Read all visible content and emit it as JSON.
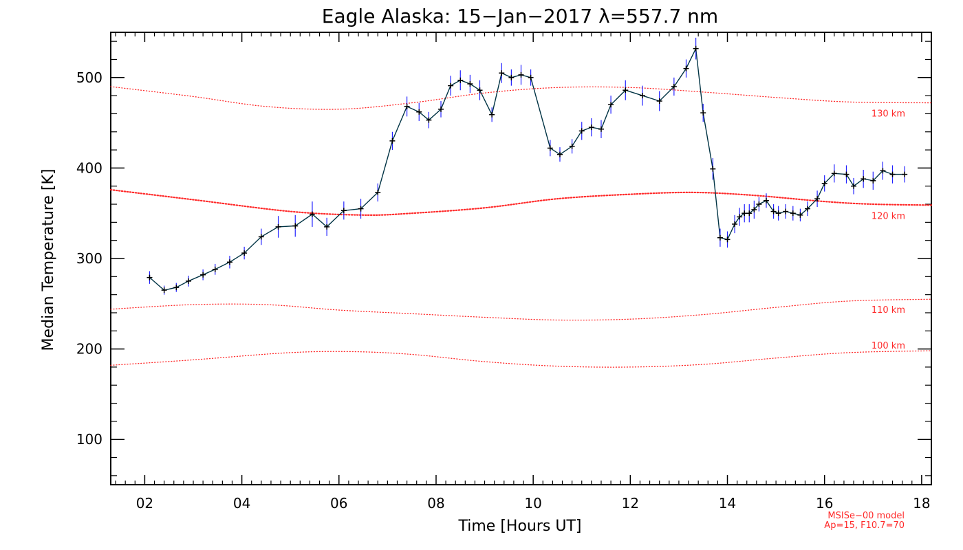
{
  "chart_data": {
    "type": "line",
    "title": "Eagle Alaska: 15−Jan−2017 λ=557.7 nm",
    "xlabel": "Time [Hours UT]",
    "ylabel": "Median Temperature [K]",
    "xlim": [
      1.3,
      18.2
    ],
    "ylim": [
      50,
      550
    ],
    "xticks": [
      {
        "value": 2,
        "label": "02"
      },
      {
        "value": 4,
        "label": "04"
      },
      {
        "value": 6,
        "label": "06"
      },
      {
        "value": 8,
        "label": "08"
      },
      {
        "value": 10,
        "label": "10"
      },
      {
        "value": 12,
        "label": "12"
      },
      {
        "value": 14,
        "label": "14"
      },
      {
        "value": 16,
        "label": "16"
      },
      {
        "value": 18,
        "label": "18"
      }
    ],
    "yticks": [
      {
        "value": 100,
        "label": "100"
      },
      {
        "value": 200,
        "label": "200"
      },
      {
        "value": 300,
        "label": "300"
      },
      {
        "value": 400,
        "label": "400"
      },
      {
        "value": 500,
        "label": "500"
      }
    ],
    "grid": false,
    "colors": {
      "measured_line": "#003344",
      "error_bars": "#2222ff",
      "markers": "#000000",
      "model": "#ff2a2a"
    },
    "series": [
      {
        "points": [
          [
            2.1,
            279,
            7
          ],
          [
            2.4,
            265,
            5
          ],
          [
            2.65,
            268,
            5
          ],
          [
            2.9,
            275,
            6
          ],
          [
            3.2,
            282,
            6
          ],
          [
            3.45,
            288,
            6
          ],
          [
            3.75,
            296,
            7
          ],
          [
            4.05,
            306,
            7
          ],
          [
            4.4,
            324,
            9
          ],
          [
            4.75,
            335,
            12
          ],
          [
            5.1,
            336,
            12
          ],
          [
            5.45,
            349,
            14
          ],
          [
            5.75,
            335,
            10
          ],
          [
            6.1,
            353,
            10
          ],
          [
            6.45,
            355,
            11
          ],
          [
            6.8,
            373,
            10
          ],
          [
            7.1,
            430,
            10
          ],
          [
            7.4,
            468,
            11
          ],
          [
            7.65,
            462,
            10
          ],
          [
            7.85,
            453,
            9
          ],
          [
            8.1,
            465,
            9
          ],
          [
            8.3,
            491,
            11
          ],
          [
            8.5,
            497,
            11
          ],
          [
            8.7,
            493,
            10
          ],
          [
            8.9,
            486,
            11
          ],
          [
            9.15,
            459,
            8
          ],
          [
            9.35,
            505,
            11
          ],
          [
            9.55,
            500,
            9
          ],
          [
            9.75,
            503,
            11
          ],
          [
            9.95,
            500,
            9
          ],
          [
            10.35,
            422,
            9
          ],
          [
            10.55,
            415,
            8
          ],
          [
            10.8,
            424,
            8
          ],
          [
            11.0,
            441,
            10
          ],
          [
            11.2,
            445,
            10
          ],
          [
            11.4,
            443,
            10
          ],
          [
            11.6,
            470,
            10
          ],
          [
            11.9,
            486,
            11
          ],
          [
            12.25,
            480,
            11
          ],
          [
            12.6,
            474,
            11
          ],
          [
            12.9,
            490,
            10
          ],
          [
            13.15,
            510,
            10
          ],
          [
            13.35,
            532,
            12
          ],
          [
            13.5,
            461,
            10
          ],
          [
            13.7,
            399,
            12
          ],
          [
            13.85,
            323,
            10
          ],
          [
            14.0,
            321,
            9
          ],
          [
            14.15,
            338,
            10
          ],
          [
            14.25,
            346,
            10
          ],
          [
            14.35,
            350,
            10
          ],
          [
            14.45,
            350,
            10
          ],
          [
            14.55,
            354,
            10
          ],
          [
            14.65,
            360,
            8
          ],
          [
            14.8,
            364,
            8
          ],
          [
            14.95,
            352,
            8
          ],
          [
            15.05,
            350,
            8
          ],
          [
            15.2,
            352,
            8
          ],
          [
            15.35,
            350,
            8
          ],
          [
            15.5,
            348,
            7
          ],
          [
            15.65,
            355,
            8
          ],
          [
            15.85,
            366,
            9
          ],
          [
            16.0,
            383,
            9
          ],
          [
            16.2,
            394,
            10
          ],
          [
            16.45,
            393,
            10
          ],
          [
            16.6,
            380,
            9
          ],
          [
            16.8,
            388,
            10
          ],
          [
            17.0,
            386,
            10
          ],
          [
            17.2,
            397,
            10
          ],
          [
            17.4,
            393,
            10
          ],
          [
            17.65,
            393,
            9
          ]
        ]
      },
      {
        "name": "100 km",
        "linestyle": "dotted",
        "points": [
          [
            1.3,
            182
          ],
          [
            3,
            188
          ],
          [
            5,
            196
          ],
          [
            6.3,
            197
          ],
          [
            7.5,
            194
          ],
          [
            9,
            186
          ],
          [
            10.5,
            181
          ],
          [
            12,
            180
          ],
          [
            13.5,
            183
          ],
          [
            15,
            190
          ],
          [
            16.5,
            196
          ],
          [
            18.2,
            198
          ]
        ]
      },
      {
        "name": "110 km",
        "linestyle": "dotted",
        "points": [
          [
            1.3,
            244
          ],
          [
            3,
            249
          ],
          [
            4.5,
            249
          ],
          [
            6,
            243
          ],
          [
            7.5,
            239
          ],
          [
            9,
            235
          ],
          [
            10.5,
            232
          ],
          [
            12,
            233
          ],
          [
            13.5,
            238
          ],
          [
            15,
            246
          ],
          [
            16.5,
            253
          ],
          [
            18.2,
            255
          ]
        ]
      },
      {
        "name": "120 km",
        "linestyle": "dotted-bold",
        "points": [
          [
            1.3,
            376
          ],
          [
            3,
            365
          ],
          [
            5,
            352
          ],
          [
            6.5,
            348
          ],
          [
            7.5,
            350
          ],
          [
            9,
            356
          ],
          [
            10.5,
            366
          ],
          [
            12,
            371
          ],
          [
            13.3,
            373
          ],
          [
            14.5,
            370
          ],
          [
            16,
            363
          ],
          [
            17,
            360
          ],
          [
            18.2,
            359
          ]
        ]
      },
      {
        "name": "130 km",
        "linestyle": "dotted",
        "points": [
          [
            1.3,
            490
          ],
          [
            3,
            479
          ],
          [
            4.5,
            468
          ],
          [
            6,
            465
          ],
          [
            7.5,
            472
          ],
          [
            9,
            483
          ],
          [
            10.5,
            489
          ],
          [
            12,
            489
          ],
          [
            13.5,
            484
          ],
          [
            15,
            478
          ],
          [
            16.5,
            473
          ],
          [
            18.2,
            472
          ]
        ]
      }
    ],
    "model_note": [
      "MSISe−00 model",
      "Ap=15, F10.7=70"
    ]
  }
}
